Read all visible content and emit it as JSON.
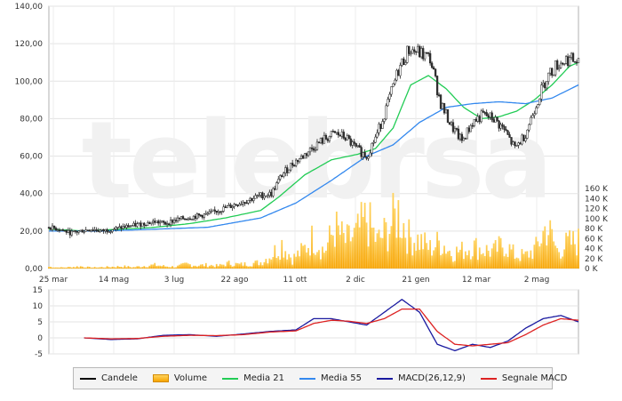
{
  "chart_data": [
    {
      "type": "candlestick",
      "watermark": "telebrsa",
      "y_ticks": [
        "140,00",
        "120,00",
        "100,00",
        "80,00",
        "60,00",
        "40,00",
        "20,00",
        "0,00"
      ],
      "ylim": [
        0,
        140
      ],
      "volume_ticks": [
        "160 K",
        "140 K",
        "120 K",
        "100 K",
        "80 K",
        "60 K",
        "40 K",
        "20 K",
        "0 K"
      ],
      "volume_lim": [
        0,
        160
      ],
      "x_ticks": [
        "25 mar",
        "14 mag",
        "3 lug",
        "22 ago",
        "11 ott",
        "2 dic",
        "21 gen",
        "12 mar",
        "2 mag"
      ],
      "grid": true,
      "series": [
        {
          "name": "Candele",
          "color": "#000000",
          "points_approx": [
            [
              0,
              22
            ],
            [
              6,
              21
            ],
            [
              12,
              19
            ],
            [
              18,
              20
            ],
            [
              24,
              21
            ],
            [
              30,
              20
            ],
            [
              36,
              21
            ],
            [
              42,
              22
            ],
            [
              48,
              23
            ],
            [
              54,
              24
            ],
            [
              60,
              25
            ],
            [
              66,
              24
            ],
            [
              72,
              26
            ],
            [
              78,
              27
            ],
            [
              84,
              28
            ],
            [
              90,
              29
            ],
            [
              96,
              31
            ],
            [
              102,
              33
            ],
            [
              108,
              35
            ],
            [
              114,
              37
            ],
            [
              120,
              39
            ],
            [
              126,
              40
            ],
            [
              132,
              50
            ],
            [
              138,
              56
            ],
            [
              144,
              60
            ],
            [
              150,
              65
            ],
            [
              156,
              69
            ],
            [
              162,
              72
            ],
            [
              168,
              70
            ],
            [
              174,
              64
            ],
            [
              180,
              60
            ],
            [
              186,
              72
            ],
            [
              192,
              88
            ],
            [
              198,
              106
            ],
            [
              204,
              117
            ],
            [
              210,
              115
            ],
            [
              216,
              112
            ],
            [
              222,
              88
            ],
            [
              228,
              76
            ],
            [
              234,
              68
            ],
            [
              240,
              78
            ],
            [
              246,
              82
            ],
            [
              252,
              80
            ],
            [
              258,
              74
            ],
            [
              264,
              64
            ],
            [
              270,
              72
            ],
            [
              276,
              88
            ],
            [
              282,
              102
            ],
            [
              288,
              109
            ],
            [
              294,
              112
            ],
            [
              300,
              110
            ]
          ]
        },
        {
          "name": "Media 21",
          "color": "#22cc55",
          "points_approx": [
            [
              0,
              21
            ],
            [
              20,
              20
            ],
            [
              40,
              21
            ],
            [
              60,
              22
            ],
            [
              80,
              24
            ],
            [
              100,
              27
            ],
            [
              120,
              31
            ],
            [
              130,
              38
            ],
            [
              145,
              50
            ],
            [
              160,
              58
            ],
            [
              175,
              61
            ],
            [
              185,
              64
            ],
            [
              195,
              75
            ],
            [
              205,
              98
            ],
            [
              215,
              103
            ],
            [
              225,
              96
            ],
            [
              235,
              86
            ],
            [
              245,
              80
            ],
            [
              255,
              81
            ],
            [
              265,
              84
            ],
            [
              275,
              90
            ],
            [
              285,
              98
            ],
            [
              295,
              108
            ],
            [
              300,
              110
            ]
          ]
        },
        {
          "name": "Media 55",
          "color": "#3388ee",
          "points_approx": [
            [
              0,
              20
            ],
            [
              30,
              20
            ],
            [
              60,
              21
            ],
            [
              90,
              22
            ],
            [
              120,
              27
            ],
            [
              140,
              35
            ],
            [
              160,
              47
            ],
            [
              180,
              60
            ],
            [
              195,
              66
            ],
            [
              210,
              78
            ],
            [
              225,
              86
            ],
            [
              240,
              88
            ],
            [
              255,
              89
            ],
            [
              270,
              88
            ],
            [
              285,
              91
            ],
            [
              300,
              98
            ]
          ]
        }
      ],
      "volume_points_approx": [
        [
          0,
          4
        ],
        [
          6,
          2
        ],
        [
          12,
          3
        ],
        [
          18,
          5
        ],
        [
          24,
          2
        ],
        [
          30,
          3
        ],
        [
          36,
          4
        ],
        [
          42,
          5
        ],
        [
          48,
          3
        ],
        [
          54,
          6
        ],
        [
          60,
          8
        ],
        [
          66,
          5
        ],
        [
          72,
          4
        ],
        [
          78,
          10
        ],
        [
          84,
          7
        ],
        [
          90,
          8
        ],
        [
          96,
          6
        ],
        [
          102,
          12
        ],
        [
          108,
          9
        ],
        [
          114,
          11
        ],
        [
          120,
          14
        ],
        [
          126,
          30
        ],
        [
          132,
          55
        ],
        [
          138,
          22
        ],
        [
          144,
          40
        ],
        [
          150,
          70
        ],
        [
          156,
          38
        ],
        [
          162,
          90
        ],
        [
          168,
          60
        ],
        [
          174,
          75
        ],
        [
          180,
          110
        ],
        [
          186,
          60
        ],
        [
          192,
          85
        ],
        [
          198,
          125
        ],
        [
          204,
          70
        ],
        [
          210,
          62
        ],
        [
          216,
          45
        ],
        [
          222,
          60
        ],
        [
          228,
          35
        ],
        [
          234,
          40
        ],
        [
          240,
          50
        ],
        [
          246,
          42
        ],
        [
          252,
          38
        ],
        [
          258,
          55
        ],
        [
          264,
          30
        ],
        [
          270,
          28
        ],
        [
          276,
          45
        ],
        [
          282,
          95
        ],
        [
          288,
          40
        ],
        [
          294,
          55
        ],
        [
          300,
          60
        ]
      ]
    },
    {
      "type": "line",
      "y_ticks": [
        "15",
        "10",
        "5",
        "0",
        "-5"
      ],
      "ylim": [
        -5,
        15
      ],
      "series": [
        {
          "name": "MACD(26,12,9)",
          "color": "#1a1aa0",
          "points_approx": [
            [
              20,
              0
            ],
            [
              35,
              -0.5
            ],
            [
              50,
              -0.3
            ],
            [
              65,
              0.8
            ],
            [
              80,
              1
            ],
            [
              95,
              0.5
            ],
            [
              110,
              1.2
            ],
            [
              125,
              2
            ],
            [
              140,
              2.5
            ],
            [
              150,
              6
            ],
            [
              160,
              6
            ],
            [
              170,
              5
            ],
            [
              180,
              4
            ],
            [
              190,
              8
            ],
            [
              200,
              12
            ],
            [
              210,
              8
            ],
            [
              220,
              -2
            ],
            [
              230,
              -4
            ],
            [
              240,
              -2
            ],
            [
              250,
              -3
            ],
            [
              260,
              -1
            ],
            [
              270,
              3
            ],
            [
              280,
              6
            ],
            [
              290,
              7
            ],
            [
              300,
              5
            ]
          ]
        },
        {
          "name": "Segnale MACD",
          "color": "#dd2222",
          "points_approx": [
            [
              20,
              0
            ],
            [
              35,
              -0.3
            ],
            [
              50,
              -0.2
            ],
            [
              65,
              0.5
            ],
            [
              80,
              0.8
            ],
            [
              95,
              0.7
            ],
            [
              110,
              1
            ],
            [
              125,
              1.8
            ],
            [
              140,
              2.2
            ],
            [
              150,
              4.5
            ],
            [
              160,
              5.5
            ],
            [
              170,
              5.2
            ],
            [
              180,
              4.5
            ],
            [
              190,
              6
            ],
            [
              200,
              9
            ],
            [
              210,
              9
            ],
            [
              220,
              2
            ],
            [
              230,
              -2
            ],
            [
              240,
              -2.5
            ],
            [
              250,
              -2
            ],
            [
              260,
              -1.5
            ],
            [
              270,
              1
            ],
            [
              280,
              4
            ],
            [
              290,
              6
            ],
            [
              300,
              5.5
            ]
          ]
        }
      ]
    }
  ],
  "legend": [
    {
      "label": "Candele",
      "color": "#000000",
      "kind": "line"
    },
    {
      "label": "Volume",
      "color": "#f7a400",
      "kind": "bar"
    },
    {
      "label": "Media 21",
      "color": "#22cc55",
      "kind": "line"
    },
    {
      "label": "Media 55",
      "color": "#3388ee",
      "kind": "line"
    },
    {
      "label": "MACD(26,12,9)",
      "color": "#1a1aa0",
      "kind": "line"
    },
    {
      "label": "Segnale MACD",
      "color": "#dd2222",
      "kind": "line"
    }
  ]
}
